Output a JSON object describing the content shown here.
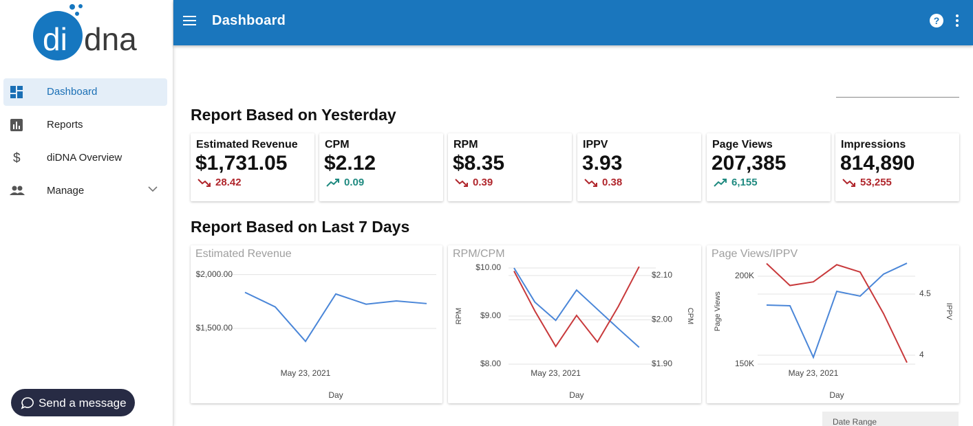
{
  "logo": {
    "part_a": "di",
    "part_b": "dna"
  },
  "header": {
    "title": "Dashboard"
  },
  "nav": [
    "Dashboard",
    "Reports",
    "diDNA Overview",
    "Manage"
  ],
  "sections": [
    "Report Based on Yesterday",
    "Report Based on Last 7 Days"
  ],
  "cards": [
    {
      "label": "Estimated Revenue",
      "value": "$1,731.05",
      "change": "28.42",
      "direction": "down"
    },
    {
      "label": "CPM",
      "value": "$2.12",
      "change": "0.09",
      "direction": "up"
    },
    {
      "label": "RPM",
      "value": "$8.35",
      "change": "0.39",
      "direction": "down"
    },
    {
      "label": "IPPV",
      "value": "3.93",
      "change": "0.38",
      "direction": "down"
    },
    {
      "label": "Page Views",
      "value": "207,385",
      "change": "6,155",
      "direction": "up"
    },
    {
      "label": "Impressions",
      "value": "814,890",
      "change": "53,255",
      "direction": "down"
    }
  ],
  "chart_data": [
    {
      "type": "line",
      "title": "Estimated Revenue",
      "x_label": "Day",
      "categories": [
        null,
        null,
        "May 23, 2021",
        null,
        null,
        null,
        null
      ],
      "series": [
        {
          "color": "#4a86d8",
          "values": [
            1835,
            1700,
            1380,
            1820,
            1725,
            1755,
            1731
          ]
        }
      ],
      "ylim": [
        1200,
        2100
      ],
      "yticks": [
        {
          "value": 1500,
          "label": "$1,500.00"
        },
        {
          "value": 2000,
          "label": "$2,000.00"
        }
      ],
      "grid": true
    },
    {
      "type": "line",
      "title": "RPM/CPM",
      "x_label": "Day",
      "y_label": "RPM",
      "y2_label": "CPM",
      "categories": [
        null,
        null,
        "May 23, 2021",
        null,
        null,
        null,
        null
      ],
      "series": [
        {
          "color": "#4a86d8",
          "values": [
            10.0,
            9.29,
            8.91,
            9.54,
            9.14,
            8.74,
            8.35
          ]
        },
        {
          "color": "#c8393b",
          "axis": "y2",
          "values": [
            2.11,
            2.02,
            1.94,
            2.01,
            1.95,
            2.03,
            2.12
          ]
        }
      ],
      "ylim": [
        8,
        10
      ],
      "yticks": [
        {
          "value": 8,
          "label": "$8.00"
        },
        {
          "value": 9,
          "label": "$9.00"
        },
        {
          "value": 10,
          "label": "$10.00"
        }
      ],
      "y2lim": [
        1.9,
        2.117
      ],
      "y2ticks": [
        {
          "value": 1.9,
          "label": "$1.90"
        },
        {
          "value": 2.0,
          "label": "$2.00"
        },
        {
          "value": 2.1,
          "label": "$2.10"
        }
      ],
      "grid": true
    },
    {
      "type": "line",
      "title": "Page Views/IPPV",
      "x_label": "Day",
      "y_label": "Page Views",
      "y2_label": "IPPV",
      "categories": [
        null,
        null,
        "May 23, 2021",
        null,
        null,
        null,
        null
      ],
      "series": [
        {
          "color": "#4a86d8",
          "values": [
            183600,
            183200,
            153900,
            191400,
            188700,
            201200,
            207400
          ]
        },
        {
          "color": "#c8393b",
          "axis": "y2",
          "values": [
            4.75,
            4.57,
            4.6,
            4.74,
            4.68,
            4.34,
            3.94
          ]
        }
      ],
      "ylim": [
        150000,
        210000
      ],
      "yticks": [
        {
          "value": 150000,
          "label": "150K"
        },
        {
          "value": 200000,
          "label": "200K"
        }
      ],
      "y2lim": [
        3.9,
        4.8
      ],
      "y2ticks": [
        4,
        4.5
      ],
      "grid": true
    }
  ],
  "send_button": "Send a message",
  "date_range": "Date Range"
}
